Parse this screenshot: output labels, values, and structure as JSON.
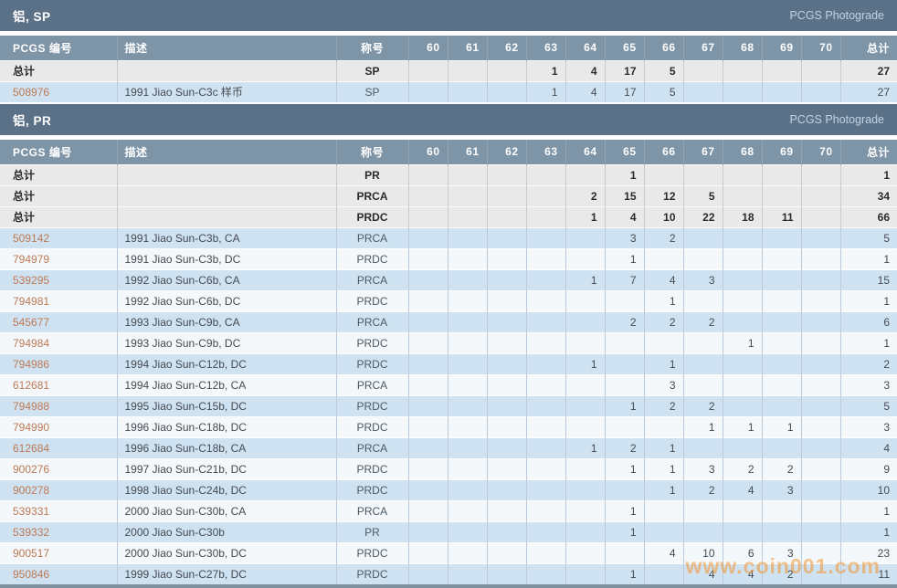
{
  "photograde_label": "PCGS Photograde",
  "watermark": "www.coin001.com",
  "table": {
    "col_pcgs": "PCGS 编号",
    "col_description": "描述",
    "col_designation": "称号",
    "grade_columns": [
      "60",
      "61",
      "62",
      "63",
      "64",
      "65",
      "66",
      "67",
      "68",
      "69",
      "70"
    ],
    "col_total": "总计",
    "total_row_label": "总计"
  },
  "colors": {
    "section_bar": "#5b7187",
    "column_header": "#7e94a7",
    "row_blue": "#cfe2f1",
    "row_light": "#f4f8fb",
    "total_row_bg": "#e9e9e9",
    "link_orange": "#bd7a55",
    "watermark_orange": "#f19b3e"
  },
  "sections": [
    {
      "title": "铝, SP",
      "total_rows": [
        {
          "designation": "SP",
          "values": [
            "",
            "",
            "",
            "1",
            "4",
            "17",
            "5",
            "",
            "",
            "",
            "",
            "27"
          ]
        }
      ],
      "rows": [
        {
          "number": "508976",
          "description": "1991 Jiao Sun-C3c 样币",
          "designation": "SP",
          "values": [
            "",
            "",
            "",
            "1",
            "4",
            "17",
            "5",
            "",
            "",
            "",
            "",
            "27"
          ]
        }
      ]
    },
    {
      "title": "铝, PR",
      "total_rows": [
        {
          "designation": "PR",
          "values": [
            "",
            "",
            "",
            "",
            "",
            "1",
            "",
            "",
            "",
            "",
            "",
            "1"
          ]
        },
        {
          "designation": "PRCA",
          "values": [
            "",
            "",
            "",
            "",
            "2",
            "15",
            "12",
            "5",
            "",
            "",
            "",
            "34"
          ]
        },
        {
          "designation": "PRDC",
          "values": [
            "",
            "",
            "",
            "",
            "1",
            "4",
            "10",
            "22",
            "18",
            "11",
            "",
            "66"
          ]
        }
      ],
      "rows": [
        {
          "number": "509142",
          "description": "1991 Jiao Sun-C3b, CA",
          "designation": "PRCA",
          "values": [
            "",
            "",
            "",
            "",
            "",
            "3",
            "2",
            "",
            "",
            "",
            "",
            "5"
          ]
        },
        {
          "number": "794979",
          "description": "1991 Jiao Sun-C3b, DC",
          "designation": "PRDC",
          "values": [
            "",
            "",
            "",
            "",
            "",
            "1",
            "",
            "",
            "",
            "",
            "",
            "1"
          ]
        },
        {
          "number": "539295",
          "description": "1992 Jiao Sun-C6b, CA",
          "designation": "PRCA",
          "values": [
            "",
            "",
            "",
            "",
            "1",
            "7",
            "4",
            "3",
            "",
            "",
            "",
            "15"
          ]
        },
        {
          "number": "794981",
          "description": "1992 Jiao Sun-C6b, DC",
          "designation": "PRDC",
          "values": [
            "",
            "",
            "",
            "",
            "",
            "",
            "1",
            "",
            "",
            "",
            "",
            "1"
          ]
        },
        {
          "number": "545677",
          "description": "1993 Jiao Sun-C9b, CA",
          "designation": "PRCA",
          "values": [
            "",
            "",
            "",
            "",
            "",
            "2",
            "2",
            "2",
            "",
            "",
            "",
            "6"
          ]
        },
        {
          "number": "794984",
          "description": "1993 Jiao Sun-C9b, DC",
          "designation": "PRDC",
          "values": [
            "",
            "",
            "",
            "",
            "",
            "",
            "",
            "",
            "1",
            "",
            "",
            "1"
          ]
        },
        {
          "number": "794986",
          "description": "1994 Jiao Sun-C12b, DC",
          "designation": "PRDC",
          "values": [
            "",
            "",
            "",
            "",
            "1",
            "",
            "1",
            "",
            "",
            "",
            "",
            "2"
          ]
        },
        {
          "number": "612681",
          "description": "1994 Jiao Sun-C12b, CA",
          "designation": "PRCA",
          "values": [
            "",
            "",
            "",
            "",
            "",
            "",
            "3",
            "",
            "",
            "",
            "",
            "3"
          ]
        },
        {
          "number": "794988",
          "description": "1995 Jiao Sun-C15b, DC",
          "designation": "PRDC",
          "values": [
            "",
            "",
            "",
            "",
            "",
            "1",
            "2",
            "2",
            "",
            "",
            "",
            "5"
          ]
        },
        {
          "number": "794990",
          "description": "1996 Jiao Sun-C18b, DC",
          "designation": "PRDC",
          "values": [
            "",
            "",
            "",
            "",
            "",
            "",
            "",
            "1",
            "1",
            "1",
            "",
            "3"
          ]
        },
        {
          "number": "612684",
          "description": "1996 Jiao Sun-C18b, CA",
          "designation": "PRCA",
          "values": [
            "",
            "",
            "",
            "",
            "1",
            "2",
            "1",
            "",
            "",
            "",
            "",
            "4"
          ]
        },
        {
          "number": "900276",
          "description": "1997 Jiao Sun-C21b, DC",
          "designation": "PRDC",
          "values": [
            "",
            "",
            "",
            "",
            "",
            "1",
            "1",
            "3",
            "2",
            "2",
            "",
            "9"
          ]
        },
        {
          "number": "900278",
          "description": "1998 Jiao Sun-C24b, DC",
          "designation": "PRDC",
          "values": [
            "",
            "",
            "",
            "",
            "",
            "",
            "1",
            "2",
            "4",
            "3",
            "",
            "10"
          ]
        },
        {
          "number": "539331",
          "description": "2000 Jiao Sun-C30b, CA",
          "designation": "PRCA",
          "values": [
            "",
            "",
            "",
            "",
            "",
            "1",
            "",
            "",
            "",
            "",
            "",
            "1"
          ]
        },
        {
          "number": "539332",
          "description": "2000 Jiao Sun-C30b",
          "designation": "PR",
          "values": [
            "",
            "",
            "",
            "",
            "",
            "1",
            "",
            "",
            "",
            "",
            "",
            "1"
          ]
        },
        {
          "number": "900517",
          "description": "2000 Jiao Sun-C30b, DC",
          "designation": "PRDC",
          "values": [
            "",
            "",
            "",
            "",
            "",
            "",
            "4",
            "10",
            "6",
            "3",
            "",
            "23"
          ]
        },
        {
          "number": "950846",
          "description": "1999 Jiao Sun-C27b, DC",
          "designation": "PRDC",
          "values": [
            "",
            "",
            "",
            "",
            "",
            "1",
            "",
            "4",
            "4",
            "2",
            "",
            "11"
          ]
        }
      ]
    }
  ]
}
